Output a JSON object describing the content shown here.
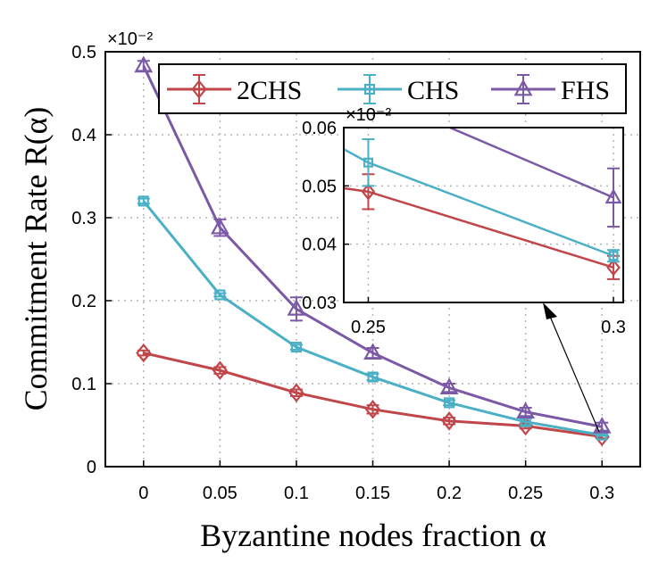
{
  "chart_data": {
    "type": "line",
    "title": "",
    "xlabel": "Byzantine nodes fraction α",
    "ylabel": "Commitment Rate R(α)",
    "y_scale_label": "×10⁻²",
    "x": [
      0,
      0.05,
      0.1,
      0.15,
      0.2,
      0.25,
      0.3
    ],
    "x_tick_labels": [
      "0",
      "0.05",
      "0.1",
      "0.15",
      "0.2",
      "0.25",
      "0.3"
    ],
    "y_tick_labels": [
      "0",
      "0.1",
      "0.2",
      "0.3",
      "0.4",
      "0.5"
    ],
    "xlim": [
      -0.025,
      0.325
    ],
    "ylim": [
      0,
      0.5
    ],
    "grid": true,
    "legend_position": "top",
    "series": [
      {
        "name": "2CHS",
        "color": "#c0464a",
        "marker": "diamond",
        "values": [
          0.137,
          0.116,
          0.089,
          0.069,
          0.055,
          0.049,
          0.036
        ],
        "errors": [
          0.003,
          0.004,
          0.004,
          0.005,
          0.004,
          0.003,
          0.002
        ]
      },
      {
        "name": "CHS",
        "color": "#4bb0c6",
        "marker": "square",
        "values": [
          0.32,
          0.207,
          0.144,
          0.108,
          0.077,
          0.054,
          0.038
        ],
        "errors": [
          0.003,
          0.002,
          0.003,
          0.004,
          0.003,
          0.004,
          0.001
        ]
      },
      {
        "name": "FHS",
        "color": "#7b59a6",
        "marker": "triangle",
        "values": [
          0.483,
          0.288,
          0.19,
          0.137,
          0.095,
          0.066,
          0.048
        ],
        "errors": [
          0.006,
          0.01,
          0.014,
          0.006,
          0.005,
          0.005,
          0.005
        ]
      }
    ],
    "inset": {
      "xlim": [
        0.245,
        0.302
      ],
      "ylim": [
        0.03,
        0.06
      ],
      "x_ticks": [
        0.25,
        0.3
      ],
      "x_tick_labels": [
        "0.25",
        "0.3"
      ],
      "y_ticks": [
        0.03,
        0.04,
        0.05,
        0.06
      ],
      "y_tick_labels": [
        "0.03",
        "0.04",
        "0.05",
        "0.06"
      ],
      "y_scale_label": "×10⁻²",
      "grid": true
    }
  }
}
